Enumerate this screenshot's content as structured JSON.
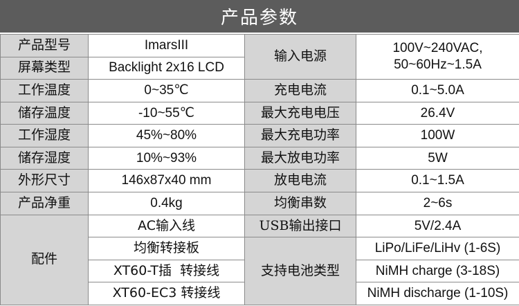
{
  "title": "产品参数",
  "rows": [
    {
      "label_left": "产品型号",
      "value_left": "ImarsIII"
    },
    {
      "label_left": "屏幕类型",
      "value_left": "Backlight 2x16 LCD"
    },
    {
      "label_left": "工作温度",
      "value_left": "0~35℃",
      "label_right": "充电电流",
      "value_right": "0.1~5.0A"
    },
    {
      "label_left": "储存温度",
      "value_left": "-10~55℃",
      "label_right": "最大充电电压",
      "value_right": "26.4V"
    },
    {
      "label_left": "工作湿度",
      "value_left": "45%~80%",
      "label_right": "最大充电功率",
      "value_right": "100W"
    },
    {
      "label_left": "储存湿度",
      "value_left": "10%~93%",
      "label_right": "最大放电功率",
      "value_right": "5W"
    },
    {
      "label_left": "外形尺寸",
      "value_left": "146x87x40 mm",
      "label_right": "放电电流",
      "value_right": "0.1~1.5A"
    },
    {
      "label_left": "产品净重",
      "value_left": "0.4kg",
      "label_right": "均衡串数",
      "value_right": "2~6s"
    }
  ],
  "input_power": {
    "label": "输入电源",
    "value_line1": "100V~240VAC,",
    "value_line2": "50~60Hz~1.5A"
  },
  "accessories": {
    "label": "配件",
    "items": [
      "AC输入线",
      "均衡转接板",
      "XT60-T插  转接线",
      "XT60-EC3 转接线"
    ]
  },
  "usb": {
    "label": "USB输出接口",
    "value": "5V/2.4A"
  },
  "battery_types": {
    "label": "支持电池类型",
    "items": [
      "LiPo/LiFe/LiHv (1-6S)",
      "NiMH charge (3-18S)",
      "NiMH discharge (1-10S)"
    ]
  }
}
